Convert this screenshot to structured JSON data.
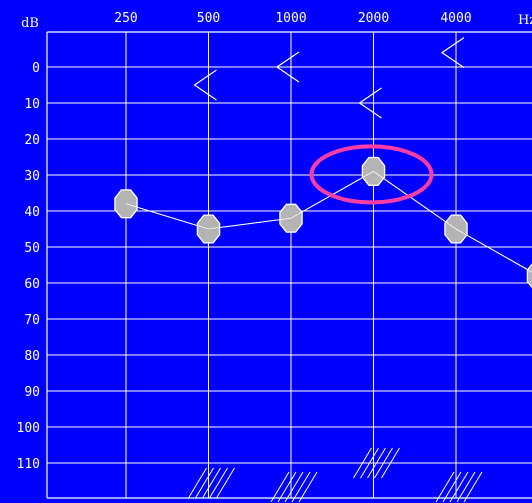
{
  "chart_data": {
    "type": "line",
    "title": "",
    "ylabel": "dB",
    "xlabel": "Hz",
    "x_scale": "log",
    "x": [
      250,
      500,
      1000,
      2000,
      4000,
      8000
    ],
    "x_tick_labels": [
      "250",
      "500",
      "1000",
      "2000",
      "4000"
    ],
    "y_tick_labels": [
      "0",
      "10",
      "20",
      "30",
      "40",
      "50",
      "60",
      "70",
      "80",
      "90",
      "100",
      "110"
    ],
    "ylim": [
      120,
      -5
    ],
    "y_inverted": true,
    "grid": true,
    "colors": {
      "background": "#0000ff",
      "grid": "#ffffff",
      "marker_fill": "#b4b4b4",
      "highlight": "#ff3ea5"
    },
    "series": [
      {
        "marker": "filled-circle",
        "points": [
          {
            "x": 250,
            "y": 38
          },
          {
            "x": 500,
            "y": 45
          },
          {
            "x": 1000,
            "y": 42
          },
          {
            "x": 2000,
            "y": 29
          },
          {
            "x": 4000,
            "y": 45
          },
          {
            "x": 8000,
            "y": 58
          }
        ]
      },
      {
        "marker": "bone-conduction-caret",
        "points": [
          {
            "x": 500,
            "y": 5
          },
          {
            "x": 1000,
            "y": 0
          },
          {
            "x": 2000,
            "y": 10
          },
          {
            "x": 4000,
            "y": -4
          }
        ]
      }
    ],
    "annotations": [
      {
        "type": "ellipse-highlight",
        "x": 2000,
        "y": 29
      },
      {
        "type": "masking-hatch",
        "x": 500
      },
      {
        "type": "masking-hatch",
        "x": 1000
      },
      {
        "type": "masking-hatch",
        "x": 2000
      },
      {
        "type": "masking-hatch",
        "x": 4000
      }
    ]
  }
}
